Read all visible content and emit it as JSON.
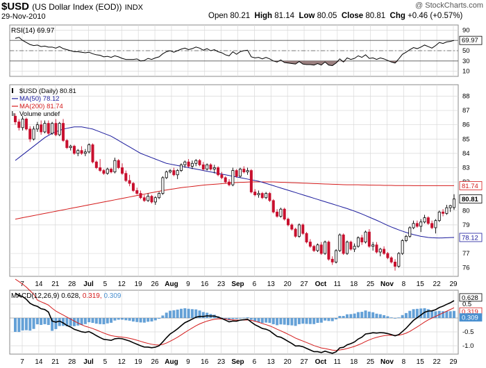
{
  "header": {
    "symbol": "$USD",
    "description": "(US Dollar Index (EOD))",
    "exchange": "INDX",
    "date": "29-Nov-2010",
    "open_label": "Open",
    "open": "80.21",
    "high_label": "High",
    "high": "81.14",
    "low_label": "Low",
    "low": "80.05",
    "close_label": "Close",
    "close": "80.81",
    "chg_label": "Chg",
    "chg": "+0.46 (+0.57%)",
    "watermark": "@ StockCharts.com"
  },
  "colors": {
    "up_candle": "#000000",
    "down_candle": "#c8102e",
    "ma50": "#1a1a9c",
    "ma200": "#d41a1a",
    "macd_line": "#000000",
    "signal_line": "#d41a1a",
    "histogram": "#4a90d0",
    "rsi_fill": "#8a6a6a",
    "grid": "#d8d8d8"
  },
  "chart_data": {
    "type": "candlestick",
    "x_labels": [
      "7",
      "14",
      "21",
      "28",
      "Jul",
      "5",
      "12",
      "19",
      "26",
      "Aug",
      "9",
      "16",
      "23",
      "Sep",
      "6",
      "13",
      "20",
      "27",
      "Oct",
      "11",
      "18",
      "25",
      "Nov",
      "8",
      "15",
      "22",
      "29"
    ],
    "price_panel": {
      "legend": [
        {
          "label": "$USD (Daily) 80.81",
          "color": "#000000"
        },
        {
          "label": "MA(50) 78.12",
          "color": "#1a1a9c"
        },
        {
          "label": "MA(200) 81.74",
          "color": "#d41a1a"
        },
        {
          "label": "Volume undef",
          "color": "#000000"
        }
      ],
      "y_ticks": [
        76,
        77,
        79,
        80,
        82,
        83,
        84,
        85,
        86,
        87,
        88
      ],
      "y_range": [
        75.4,
        88.8
      ],
      "value_tags": [
        {
          "label": "81.74",
          "value": 81.74,
          "style": "red"
        },
        {
          "label": "80.81",
          "value": 80.81,
          "style": "bold"
        },
        {
          "label": "78.12",
          "value": 78.12,
          "style": "blue"
        }
      ],
      "ohlc": [
        [
          86.6,
          86.8,
          86.0,
          86.2
        ],
        [
          86.2,
          86.4,
          85.6,
          85.8
        ],
        [
          85.8,
          86.6,
          85.6,
          86.4
        ],
        [
          86.4,
          86.5,
          85.6,
          85.7
        ],
        [
          85.7,
          85.9,
          84.8,
          85.0
        ],
        [
          85.0,
          85.9,
          84.9,
          85.7
        ],
        [
          85.7,
          86.2,
          85.5,
          86.0
        ],
        [
          86.0,
          86.3,
          85.3,
          85.5
        ],
        [
          85.5,
          86.3,
          85.4,
          86.1
        ],
        [
          86.1,
          86.3,
          85.3,
          85.4
        ],
        [
          85.4,
          86.2,
          85.3,
          86.1
        ],
        [
          86.1,
          86.4,
          85.2,
          85.3
        ],
        [
          85.3,
          86.2,
          85.2,
          86.1
        ],
        [
          86.1,
          86.4,
          84.8,
          84.9
        ],
        [
          84.9,
          85.0,
          84.3,
          84.4
        ],
        [
          84.4,
          84.6,
          84.2,
          84.5
        ],
        [
          84.5,
          84.6,
          83.9,
          84.0
        ],
        [
          84.0,
          84.3,
          83.8,
          84.2
        ],
        [
          84.2,
          84.5,
          83.9,
          84.0
        ],
        [
          84.0,
          84.3,
          83.8,
          84.1
        ],
        [
          84.1,
          84.7,
          84.0,
          84.6
        ],
        [
          84.6,
          84.7,
          83.3,
          83.4
        ],
        [
          83.4,
          83.5,
          82.9,
          83.0
        ],
        [
          83.0,
          83.6,
          82.7,
          82.8
        ],
        [
          82.8,
          82.9,
          82.5,
          82.6
        ],
        [
          82.6,
          83.0,
          82.5,
          82.9
        ],
        [
          82.9,
          83.0,
          82.6,
          82.7
        ],
        [
          82.7,
          83.7,
          82.6,
          83.5
        ],
        [
          83.5,
          83.6,
          82.9,
          83.0
        ],
        [
          83.0,
          83.3,
          82.5,
          82.6
        ],
        [
          82.6,
          82.8,
          82.0,
          82.1
        ],
        [
          82.1,
          82.5,
          81.7,
          81.9
        ],
        [
          81.9,
          82.0,
          81.3,
          81.4
        ],
        [
          81.4,
          81.6,
          81.1,
          81.2
        ],
        [
          81.2,
          81.4,
          80.8,
          80.9
        ],
        [
          80.9,
          81.1,
          80.6,
          80.7
        ],
        [
          80.7,
          81.2,
          80.6,
          81.0
        ],
        [
          81.0,
          81.1,
          80.5,
          80.6
        ],
        [
          80.6,
          81.0,
          80.4,
          80.9
        ],
        [
          80.9,
          81.3,
          80.8,
          81.2
        ],
        [
          81.2,
          82.4,
          81.1,
          82.3
        ],
        [
          82.3,
          82.8,
          82.2,
          82.7
        ],
        [
          82.7,
          82.9,
          82.6,
          82.8
        ],
        [
          82.8,
          83.0,
          82.4,
          82.5
        ],
        [
          82.5,
          82.9,
          82.2,
          82.8
        ],
        [
          82.8,
          83.3,
          82.7,
          83.2
        ],
        [
          83.2,
          83.5,
          83.0,
          83.4
        ],
        [
          83.4,
          83.6,
          83.0,
          83.1
        ],
        [
          83.1,
          83.5,
          82.9,
          83.3
        ],
        [
          83.3,
          83.6,
          83.1,
          83.5
        ],
        [
          83.5,
          83.6,
          83.1,
          83.2
        ],
        [
          83.2,
          83.4,
          82.8,
          82.9
        ],
        [
          82.9,
          83.3,
          82.8,
          83.2
        ],
        [
          83.2,
          83.3,
          82.8,
          82.9
        ],
        [
          82.9,
          83.2,
          82.6,
          83.0
        ],
        [
          83.0,
          83.1,
          82.4,
          82.5
        ],
        [
          82.5,
          82.7,
          82.2,
          82.3
        ],
        [
          82.3,
          82.4,
          81.9,
          82.0
        ],
        [
          82.0,
          82.2,
          81.7,
          81.8
        ],
        [
          81.8,
          83.0,
          81.7,
          82.8
        ],
        [
          82.8,
          82.9,
          82.3,
          82.4
        ],
        [
          82.4,
          83.0,
          82.3,
          82.9
        ],
        [
          82.9,
          83.1,
          82.6,
          82.7
        ],
        [
          82.7,
          83.0,
          82.5,
          82.8
        ],
        [
          82.8,
          82.9,
          81.2,
          81.3
        ],
        [
          81.3,
          81.5,
          81.0,
          81.1
        ],
        [
          81.1,
          81.4,
          80.9,
          81.2
        ],
        [
          81.2,
          81.3,
          80.8,
          80.9
        ],
        [
          80.9,
          81.3,
          80.8,
          81.2
        ],
        [
          81.2,
          81.3,
          80.6,
          80.7
        ],
        [
          80.7,
          80.8,
          79.8,
          79.9
        ],
        [
          79.9,
          80.1,
          79.5,
          79.6
        ],
        [
          79.6,
          80.2,
          79.5,
          80.1
        ],
        [
          80.1,
          80.2,
          79.3,
          79.4
        ],
        [
          79.4,
          79.5,
          78.9,
          79.0
        ],
        [
          79.0,
          79.1,
          78.6,
          78.7
        ],
        [
          78.7,
          78.8,
          78.1,
          78.2
        ],
        [
          78.2,
          79.1,
          78.1,
          79.0
        ],
        [
          79.0,
          79.1,
          78.3,
          78.4
        ],
        [
          78.4,
          78.5,
          77.7,
          77.8
        ],
        [
          77.8,
          78.0,
          77.4,
          77.5
        ],
        [
          77.5,
          77.6,
          77.1,
          77.2
        ],
        [
          77.2,
          77.7,
          77.1,
          77.6
        ],
        [
          77.6,
          77.8,
          76.9,
          77.0
        ],
        [
          77.0,
          77.9,
          76.9,
          77.8
        ],
        [
          77.8,
          77.9,
          76.5,
          76.6
        ],
        [
          76.6,
          76.8,
          76.2,
          76.4
        ],
        [
          76.4,
          77.3,
          76.3,
          77.2
        ],
        [
          77.2,
          78.4,
          77.1,
          78.3
        ],
        [
          78.3,
          78.4,
          76.9,
          77.0
        ],
        [
          77.0,
          77.9,
          76.9,
          77.8
        ],
        [
          77.8,
          77.9,
          77.2,
          77.3
        ],
        [
          77.3,
          77.7,
          77.1,
          77.5
        ],
        [
          77.5,
          78.2,
          77.4,
          78.1
        ],
        [
          78.1,
          78.3,
          77.6,
          77.8
        ],
        [
          77.8,
          78.6,
          77.7,
          78.5
        ],
        [
          78.5,
          78.7,
          77.4,
          77.5
        ],
        [
          77.5,
          77.8,
          77.2,
          77.6
        ],
        [
          77.6,
          77.8,
          77.0,
          77.1
        ],
        [
          77.1,
          77.4,
          76.8,
          77.3
        ],
        [
          77.3,
          77.5,
          76.9,
          77.0
        ],
        [
          77.0,
          77.1,
          76.6,
          76.7
        ],
        [
          76.7,
          76.8,
          76.3,
          76.4
        ],
        [
          76.4,
          76.6,
          75.8,
          76.1
        ],
        [
          76.1,
          77.1,
          76.0,
          77.0
        ],
        [
          77.0,
          78.0,
          76.9,
          77.9
        ],
        [
          77.9,
          78.3,
          77.8,
          78.2
        ],
        [
          78.2,
          78.9,
          78.1,
          78.8
        ],
        [
          78.8,
          79.3,
          78.7,
          79.1
        ],
        [
          79.1,
          79.3,
          78.8,
          78.9
        ],
        [
          78.9,
          79.4,
          78.5,
          79.2
        ],
        [
          79.2,
          79.7,
          79.1,
          79.5
        ],
        [
          79.5,
          79.6,
          79.0,
          79.1
        ],
        [
          79.1,
          79.3,
          78.7,
          78.8
        ],
        [
          78.8,
          79.4,
          78.4,
          79.3
        ],
        [
          79.3,
          80.0,
          79.2,
          79.9
        ],
        [
          79.9,
          80.1,
          79.6,
          79.8
        ],
        [
          79.8,
          80.4,
          79.7,
          80.2
        ],
        [
          80.2,
          80.4,
          79.9,
          80.35
        ],
        [
          80.21,
          81.14,
          80.05,
          80.81
        ]
      ],
      "ma50": [
        83.5,
        83.7,
        83.9,
        84.1,
        84.3,
        84.5,
        84.7,
        84.9,
        85.1,
        85.25,
        85.4,
        85.5,
        85.6,
        85.7,
        85.75,
        85.8,
        85.85,
        85.85,
        85.85,
        85.8,
        85.75,
        85.7,
        85.6,
        85.5,
        85.4,
        85.3,
        85.2,
        85.05,
        84.9,
        84.75,
        84.6,
        84.45,
        84.3,
        84.15,
        84.0,
        83.9,
        83.8,
        83.7,
        83.6,
        83.5,
        83.4,
        83.3,
        83.25,
        83.2,
        83.15,
        83.1,
        83.05,
        83.0,
        82.95,
        82.9,
        82.85,
        82.8,
        82.75,
        82.7,
        82.65,
        82.6,
        82.55,
        82.5,
        82.45,
        82.4,
        82.35,
        82.3,
        82.25,
        82.2,
        82.15,
        82.1,
        82.05,
        81.98,
        81.9,
        81.82,
        81.74,
        81.66,
        81.58,
        81.5,
        81.42,
        81.34,
        81.26,
        81.18,
        81.1,
        81.02,
        80.94,
        80.86,
        80.78,
        80.7,
        80.62,
        80.54,
        80.46,
        80.38,
        80.3,
        80.22,
        80.14,
        80.05,
        79.96,
        79.86,
        79.76,
        79.65,
        79.54,
        79.43,
        79.32,
        79.2,
        79.08,
        78.96,
        78.85,
        78.75,
        78.65,
        78.56,
        78.47,
        78.39,
        78.32,
        78.26,
        78.2,
        78.16,
        78.12,
        78.1,
        78.09,
        78.08,
        78.09,
        78.1,
        78.11,
        78.12
      ],
      "ma200": [
        79.4,
        79.45,
        79.5,
        79.55,
        79.6,
        79.65,
        79.7,
        79.75,
        79.8,
        79.85,
        79.9,
        79.95,
        80.0,
        80.05,
        80.1,
        80.15,
        80.2,
        80.25,
        80.3,
        80.35,
        80.4,
        80.45,
        80.5,
        80.55,
        80.6,
        80.65,
        80.7,
        80.75,
        80.8,
        80.85,
        80.9,
        80.95,
        81.0,
        81.05,
        81.1,
        81.15,
        81.2,
        81.25,
        81.3,
        81.35,
        81.4,
        81.44,
        81.48,
        81.52,
        81.56,
        81.6,
        81.63,
        81.66,
        81.69,
        81.72,
        81.75,
        81.78,
        81.8,
        81.82,
        81.84,
        81.86,
        81.88,
        81.9,
        81.92,
        81.94,
        81.96,
        81.97,
        81.98,
        81.99,
        82.0,
        82.0,
        82.0,
        82.0,
        82.0,
        82.0,
        82.0,
        81.99,
        81.98,
        81.97,
        81.96,
        81.95,
        81.94,
        81.93,
        81.92,
        81.91,
        81.9,
        81.89,
        81.88,
        81.87,
        81.86,
        81.85,
        81.84,
        81.83,
        81.82,
        81.81,
        81.8,
        81.8,
        81.8,
        81.8,
        81.79,
        81.79,
        81.78,
        81.78,
        81.77,
        81.77,
        81.76,
        81.76,
        81.76,
        81.75,
        81.75,
        81.75,
        81.75,
        81.75,
        81.74,
        81.74,
        81.74,
        81.74,
        81.74,
        81.74,
        81.74,
        81.74,
        81.74,
        81.74,
        81.74,
        81.74
      ]
    },
    "rsi_panel": {
      "label": "RSI(14) 69.97",
      "tag": "69.97",
      "y_ticks": [
        10,
        30,
        50,
        70,
        90
      ],
      "levels": [
        30,
        50,
        70
      ],
      "values": [
        74,
        76,
        70,
        66,
        62,
        60,
        61,
        58,
        59,
        57,
        57,
        55,
        58,
        54,
        52,
        50,
        48,
        48,
        47,
        46,
        47,
        44,
        42,
        41,
        38,
        39,
        37,
        40,
        38,
        35,
        33,
        33,
        33,
        34,
        30,
        31,
        35,
        33,
        36,
        38,
        44,
        48,
        50,
        47,
        50,
        53,
        55,
        52,
        54,
        57,
        55,
        51,
        54,
        50,
        52,
        48,
        46,
        42,
        40,
        48,
        43,
        48,
        50,
        51,
        38,
        36,
        37,
        34,
        37,
        34,
        30,
        28,
        32,
        27,
        26,
        25,
        24,
        29,
        24,
        23,
        23,
        22,
        25,
        22,
        28,
        22,
        21,
        26,
        34,
        28,
        36,
        33,
        35,
        40,
        37,
        42,
        35,
        36,
        33,
        36,
        34,
        31,
        28,
        26,
        34,
        43,
        47,
        52,
        56,
        54,
        57,
        61,
        58,
        55,
        60,
        66,
        64,
        67,
        68,
        70
      ],
      "range": [
        0,
        100
      ]
    },
    "macd_panel": {
      "label_prefix": "MACD(12,26,9)",
      "macd_value": "0.628",
      "signal_value": "0.319",
      "hist_value": "0.309",
      "y_ticks": [
        "0.5",
        "0.0",
        "-0.5",
        "-1.0"
      ],
      "tags": [
        {
          "label": "0.628",
          "value": 0.628,
          "style": "dark"
        },
        {
          "label": "0.319",
          "value": 0.319,
          "style": "red"
        },
        {
          "label": "0.309",
          "value": 0.309,
          "style": "blue"
        }
      ],
      "range": [
        -1.3,
        1.0
      ]
    }
  }
}
